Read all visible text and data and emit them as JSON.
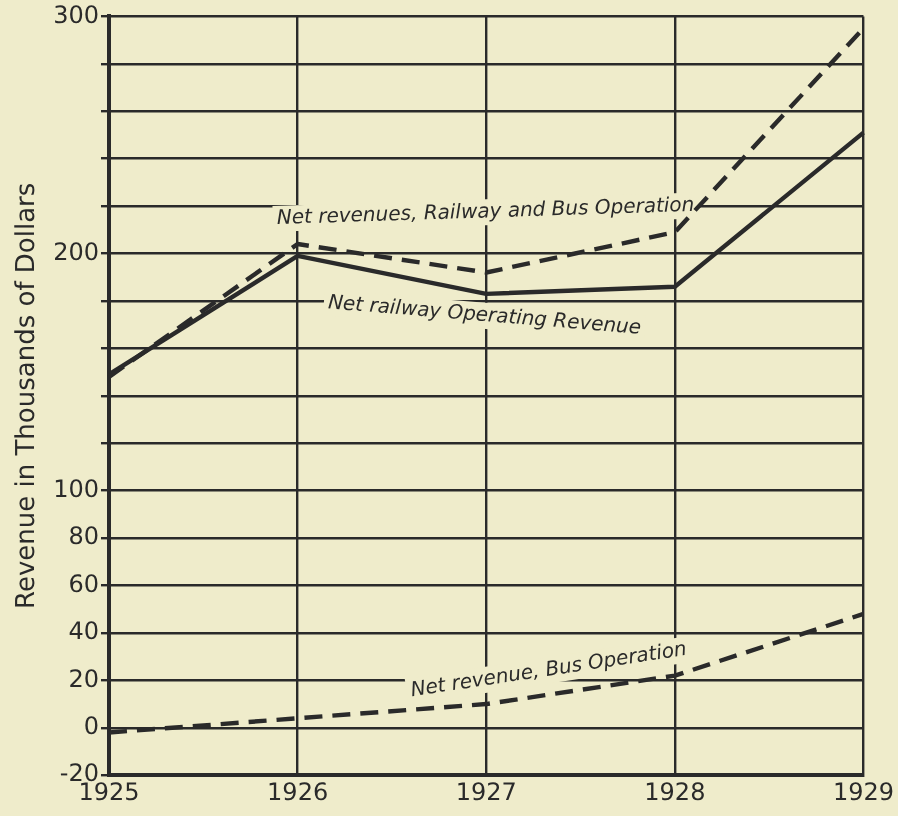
{
  "chart_data": {
    "type": "line",
    "ylabel": "Revenue in Thousands of Dollars",
    "categories": [
      "1925",
      "1926",
      "1927",
      "1928",
      "1929"
    ],
    "series": [
      {
        "name": "Net revenues, Railway and Bus Operation",
        "color": "#2a2a2a",
        "line_style": "dashed",
        "values": [
          148,
          204,
          192,
          209,
          295
        ]
      },
      {
        "name": "Net railway Operating Revenue",
        "color": "#2a2a2a",
        "line_style": "solid",
        "values": [
          149,
          199,
          183,
          186,
          251
        ]
      },
      {
        "name": "Net revenue, Bus Operation",
        "color": "#2a2a2a",
        "line_style": "dashed",
        "values": [
          -2,
          4,
          10,
          22,
          48
        ]
      }
    ],
    "ylim": [
      -20,
      300
    ],
    "yticks": [
      -20,
      0,
      20,
      40,
      60,
      80,
      100,
      {
        "value": 120,
        "label": null
      },
      {
        "value": 140,
        "label": null
      },
      {
        "value": 160,
        "label": null
      },
      {
        "value": 180,
        "label": null
      },
      200,
      {
        "value": 220,
        "label": null
      },
      {
        "value": 240,
        "label": null
      },
      {
        "value": 260,
        "label": null
      },
      {
        "value": 280,
        "label": null
      },
      300
    ],
    "grid": true,
    "legend": false,
    "marker": "none"
  }
}
